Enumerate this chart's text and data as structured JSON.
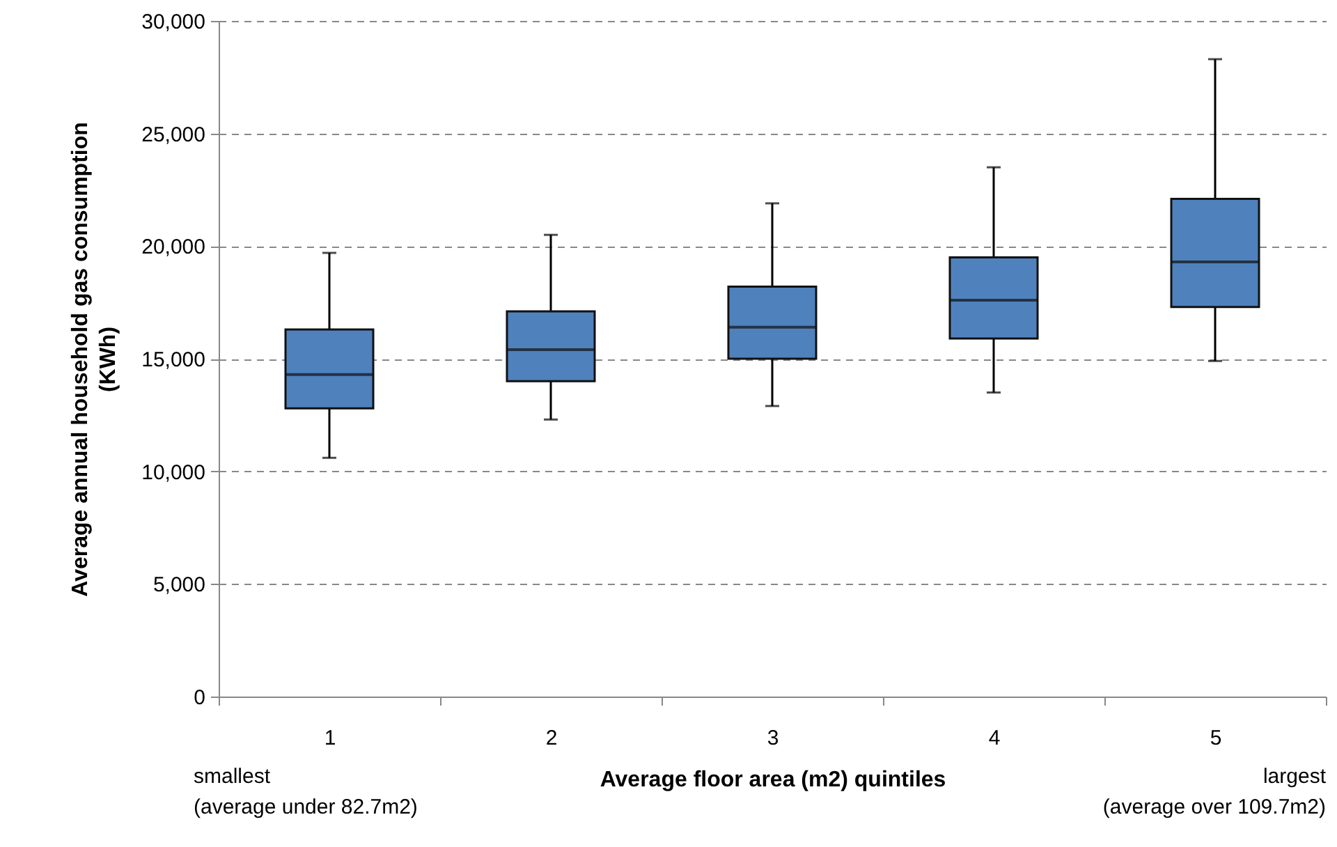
{
  "chart_data": {
    "type": "box",
    "xlabel": "Average floor area (m2) quintiles",
    "ylabel": "Average annual household gas consumption\n(KWh)",
    "categories": [
      "1",
      "2",
      "3",
      "4",
      "5"
    ],
    "color": "#4f81bd",
    "boxes": [
      {
        "low": 10600,
        "q1": 12800,
        "median": 14300,
        "q3": 16300,
        "high": 19700
      },
      {
        "low": 12300,
        "q1": 14000,
        "median": 15400,
        "q3": 17100,
        "high": 20500
      },
      {
        "low": 12900,
        "q1": 15000,
        "median": 16400,
        "q3": 18200,
        "high": 21900
      },
      {
        "low": 13500,
        "q1": 15900,
        "median": 17600,
        "q3": 19500,
        "high": 23500
      },
      {
        "low": 14900,
        "q1": 17300,
        "median": 19300,
        "q3": 22100,
        "high": 28300
      }
    ],
    "ylim": [
      0,
      30000
    ],
    "yticks": [
      0,
      {
        "value": 5000,
        "label": "5,000"
      },
      {
        "value": 10000,
        "label": "10,000"
      },
      {
        "value": 15000,
        "label": "15,000"
      },
      {
        "value": 20000,
        "label": "20,000"
      },
      {
        "value": 25000,
        "label": "25,000"
      },
      {
        "value": 30000,
        "label": "30,000"
      }
    ],
    "grid": "y",
    "annotations": [
      "smallest\n(average under 82.7m2)",
      "largest\n(average over 109.7m2)"
    ]
  }
}
